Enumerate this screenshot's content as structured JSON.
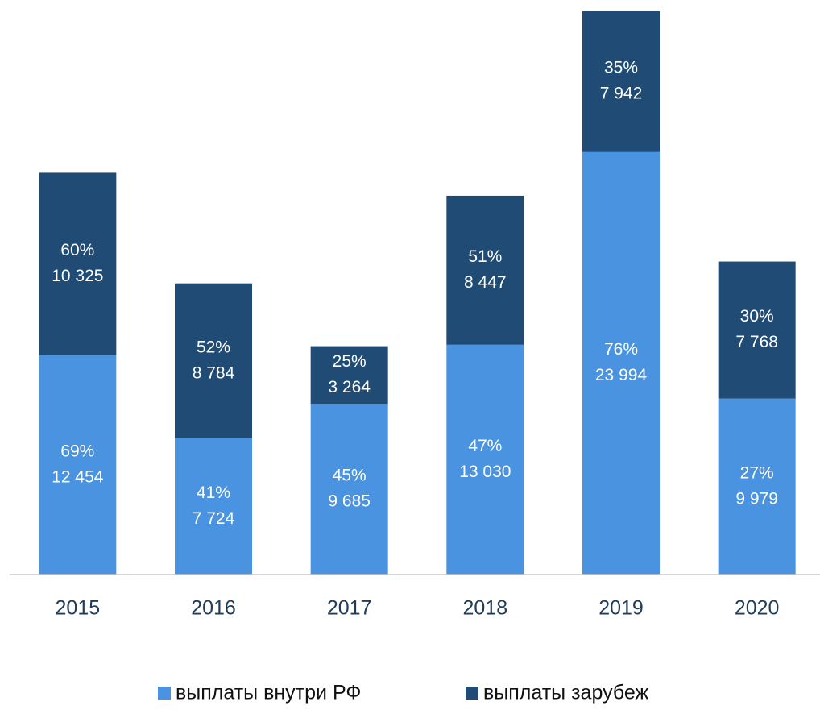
{
  "chart_data": {
    "type": "stacked_bar",
    "categories": [
      "2015",
      "2016",
      "2017",
      "2018",
      "2019",
      "2020"
    ],
    "series": [
      {
        "name": "выплаты внутри РФ",
        "color": "#4a93e0",
        "values": [
          12454,
          7724,
          9685,
          13030,
          23994,
          9979
        ],
        "value_labels": [
          "12 454",
          "7 724",
          "9 685",
          "13 030",
          "23 994",
          "9 979"
        ],
        "share_labels": [
          "69%",
          "41%",
          "45%",
          "47%",
          "76%",
          "27%"
        ]
      },
      {
        "name": "выплаты зарубеж",
        "color": "#1f4b75",
        "values": [
          10325,
          8784,
          3264,
          8447,
          7942,
          7768
        ],
        "value_labels": [
          "10 325",
          "8 784",
          "3 264",
          "8 447",
          "7 942",
          "7 768"
        ],
        "share_labels": [
          "60%",
          "52%",
          "25%",
          "51%",
          "35%",
          "30%"
        ]
      }
    ],
    "ylim": [
      0,
      32000
    ],
    "legend": "bottom"
  }
}
